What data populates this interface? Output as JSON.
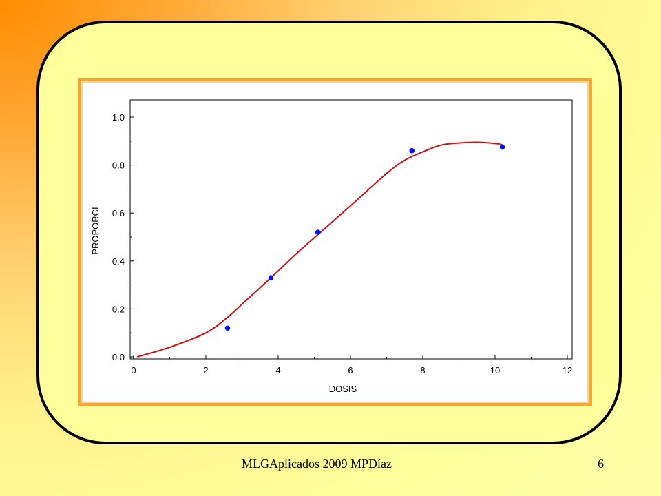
{
  "footer": {
    "left_text": "MLGAplicados   2009    MPDíaz",
    "page_number": "6"
  },
  "colors": {
    "curve": "#d01010",
    "points": "#0010ff",
    "panel_border": "#f5a732",
    "frame_border": "#000000"
  },
  "chart_data": {
    "type": "scatter",
    "title": "",
    "xlabel": "DOSIS",
    "ylabel": "PROPORCI",
    "xlim": [
      0,
      12
    ],
    "ylim": [
      0,
      1.1
    ],
    "x_ticks": [
      "0",
      "2",
      "4",
      "6",
      "8",
      "10",
      "12"
    ],
    "y_ticks": [
      "0.0",
      "0.2",
      "0.4",
      "0.6",
      "0.8",
      "1.0"
    ],
    "grid": false,
    "series": [
      {
        "type": "scatter",
        "x": [
          2.6,
          3.8,
          5.1,
          7.7,
          10.2
        ],
        "y": [
          0.12,
          0.33,
          0.52,
          0.86,
          0.875
        ]
      },
      {
        "type": "line",
        "x": [
          0.1,
          1.0,
          2.0,
          2.6,
          3.0,
          3.8,
          4.5,
          5.1,
          6.0,
          7.0,
          7.5,
          8.0,
          8.5,
          9.0,
          9.5,
          10.0,
          10.2
        ],
        "y": [
          0.0,
          0.04,
          0.1,
          0.165,
          0.22,
          0.33,
          0.43,
          0.51,
          0.63,
          0.765,
          0.82,
          0.855,
          0.883,
          0.892,
          0.895,
          0.89,
          0.885
        ]
      }
    ]
  }
}
